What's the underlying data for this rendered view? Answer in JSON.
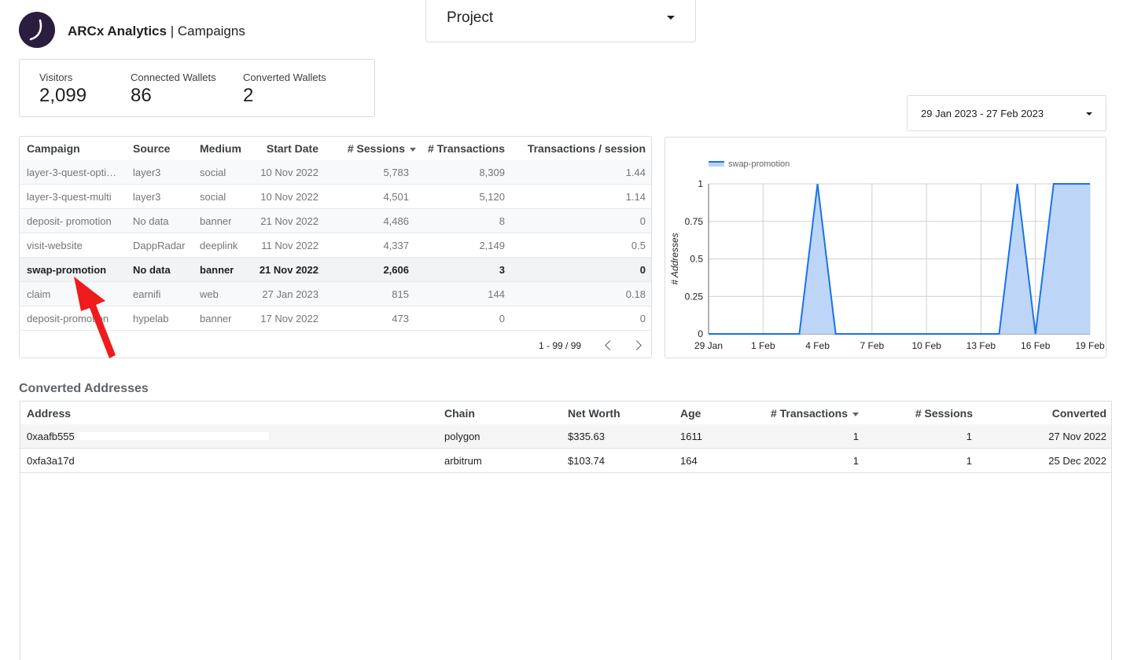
{
  "app": {
    "brand": "ARCx Analytics",
    "page": "Campaigns"
  },
  "project_select": {
    "label": "Project"
  },
  "kpis": [
    {
      "label": "Visitors",
      "value": "2,099"
    },
    {
      "label": "Connected Wallets",
      "value": "86"
    },
    {
      "label": "Converted Wallets",
      "value": "2"
    }
  ],
  "date_range": {
    "label": "29 Jan 2023 - 27 Feb 2023"
  },
  "campaigns": {
    "columns": [
      "Campaign",
      "Source",
      "Medium",
      "Start Date",
      "# Sessions",
      "# Transactions",
      "Transactions / session"
    ],
    "rows": [
      [
        "layer-3-quest-opti…",
        "layer3",
        "social",
        "10 Nov 2022",
        "5,783",
        "8,309",
        "1.44"
      ],
      [
        "layer-3-quest-multi",
        "layer3",
        "social",
        "10 Nov 2022",
        "4,501",
        "5,120",
        "1.14"
      ],
      [
        "deposit- promotion",
        "No data",
        "banner",
        "21 Nov 2022",
        "4,486",
        "8",
        "0"
      ],
      [
        "visit-website",
        "DappRadar",
        "deeplink",
        "11 Nov 2022",
        "4,337",
        "2,149",
        "0.5"
      ],
      [
        "swap-promotion",
        "No data",
        "banner",
        "21 Nov 2022",
        "2,606",
        "3",
        "0"
      ],
      [
        "claim",
        "earnifi",
        "web",
        "27 Jan 2023",
        "815",
        "144",
        "0.18"
      ],
      [
        "deposit-promotion",
        "hypelab",
        "banner",
        "17 Nov 2022",
        "473",
        "0",
        "0"
      ]
    ],
    "selected_row": 4,
    "pagination": "1 - 99 / 99"
  },
  "chart_data": {
    "type": "area",
    "series": [
      {
        "name": "swap-promotion",
        "color": "#1a73e8",
        "points": [
          [
            0,
            0
          ],
          [
            5,
            0
          ],
          [
            6,
            1
          ],
          [
            7,
            0
          ],
          [
            16,
            0
          ],
          [
            17,
            1
          ],
          [
            18,
            0
          ],
          [
            19,
            1
          ],
          [
            21,
            1
          ]
        ]
      }
    ],
    "x_tick_labels": [
      "29 Jan",
      "1 Feb",
      "4 Feb",
      "7 Feb",
      "10 Feb",
      "13 Feb",
      "16 Feb",
      "19 Feb"
    ],
    "x_tick_positions": [
      0,
      3,
      6,
      9,
      12,
      15,
      18,
      21
    ],
    "y_ticks": [
      "0",
      "0.25",
      "0.5",
      "0.75",
      "1"
    ],
    "ylabel": "# Addresses",
    "ylim": [
      0,
      1
    ],
    "legend_position": "top-left",
    "grid": true
  },
  "converted": {
    "title": "Converted Addresses",
    "columns": [
      "Address",
      "Chain",
      "Net Worth",
      "Age",
      "# Transactions",
      "# Sessions",
      "Converted"
    ],
    "rows": [
      [
        "0xaafb555",
        "polygon",
        "$335.63",
        "1611",
        "1",
        "1",
        "27 Nov 2022"
      ],
      [
        "0xfa3a17d",
        "arbitrum",
        "$103.74",
        "164",
        "1",
        "1",
        "25 Dec 2022"
      ]
    ]
  }
}
